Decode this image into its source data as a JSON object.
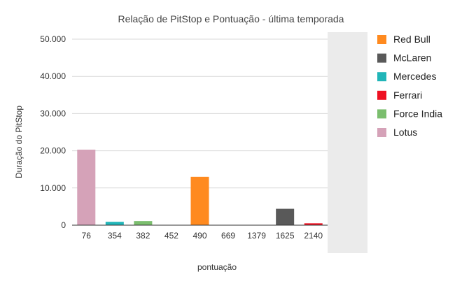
{
  "chart_data": {
    "type": "bar",
    "title": "Relação de PitStop e Pontuação - última temporada",
    "xlabel": "pontuação",
    "ylabel": "Duração do PitStop",
    "ylim": [
      0,
      50000
    ],
    "yticks": [
      "0",
      "10.000",
      "20.000",
      "30.000",
      "40.000",
      "50.000"
    ],
    "ytick_values": [
      0,
      10000,
      20000,
      30000,
      40000,
      50000
    ],
    "grid": true,
    "legend_position": "right",
    "categories": [
      "76",
      "354",
      "382",
      "452",
      "490",
      "669",
      "1379",
      "1625",
      "2140"
    ],
    "series": [
      {
        "name": "Red Bull",
        "color": "#ff8a1f",
        "values": [
          0,
          0,
          0,
          0,
          13000,
          0,
          0,
          0,
          0
        ]
      },
      {
        "name": "McLaren",
        "color": "#595959",
        "values": [
          0,
          0,
          0,
          0,
          0,
          0,
          0,
          4400,
          0
        ]
      },
      {
        "name": "Mercedes",
        "color": "#21b5b8",
        "values": [
          0,
          900,
          0,
          0,
          0,
          0,
          0,
          0,
          0
        ]
      },
      {
        "name": "Ferrari",
        "color": "#ee1122",
        "values": [
          0,
          0,
          0,
          0,
          0,
          0,
          0,
          0,
          500
        ]
      },
      {
        "name": "Force India",
        "color": "#7bbe6e",
        "values": [
          0,
          0,
          1100,
          0,
          0,
          0,
          0,
          0,
          0
        ]
      },
      {
        "name": "Lotus",
        "color": "#d5a2b8",
        "values": [
          20300,
          0,
          0,
          0,
          0,
          0,
          0,
          0,
          0
        ]
      }
    ]
  }
}
